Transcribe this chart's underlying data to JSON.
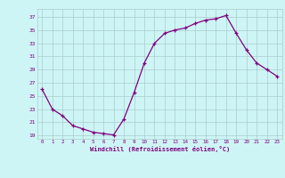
{
  "x": [
    0,
    1,
    2,
    3,
    4,
    5,
    6,
    7,
    8,
    9,
    10,
    11,
    12,
    13,
    14,
    15,
    16,
    17,
    18,
    19,
    20,
    21,
    22,
    23
  ],
  "y": [
    26,
    23,
    22,
    20.5,
    20,
    19.5,
    19.3,
    19.1,
    21.5,
    25.5,
    30,
    33,
    34.5,
    35,
    35.3,
    36,
    36.5,
    36.7,
    37.2,
    34.5,
    32,
    30,
    29,
    28
  ],
  "line_color": "#800080",
  "marker": "+",
  "bg_color": "#cef5f5",
  "grid_color": "#aacccc",
  "xlabel": "Windchill (Refroidissement éolien,°C)",
  "xlabel_color": "#800080",
  "yticks": [
    19,
    21,
    23,
    25,
    27,
    29,
    31,
    33,
    35,
    37
  ],
  "xticks": [
    0,
    1,
    2,
    3,
    4,
    5,
    6,
    7,
    8,
    9,
    10,
    11,
    12,
    13,
    14,
    15,
    16,
    17,
    18,
    19,
    20,
    21,
    22,
    23
  ],
  "ylim": [
    18.5,
    38.2
  ],
  "xlim": [
    -0.5,
    23.5
  ]
}
